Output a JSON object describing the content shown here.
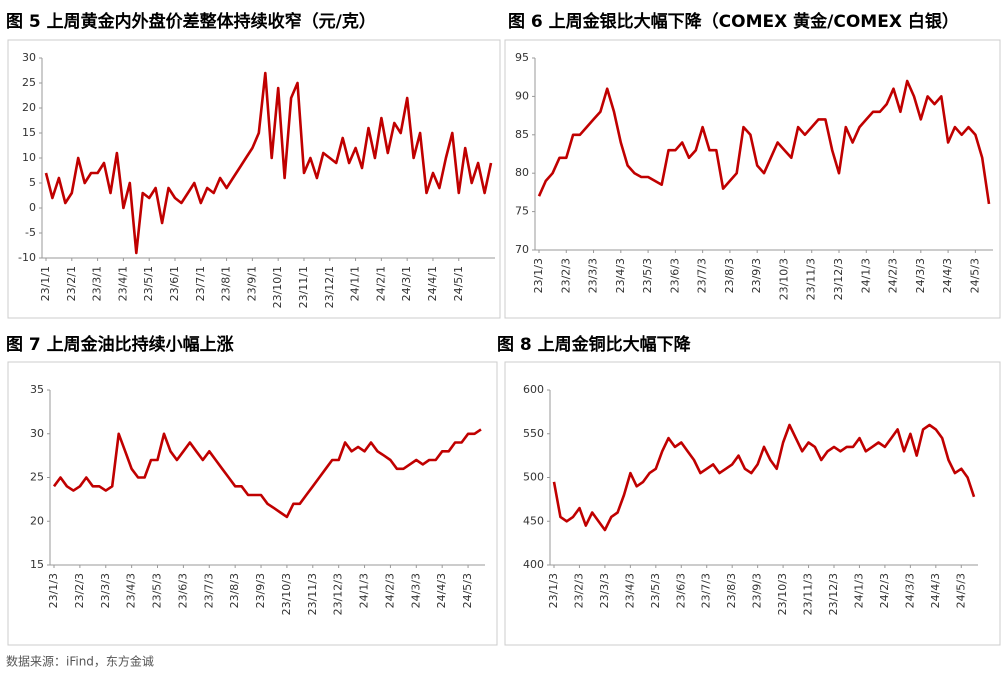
{
  "chart_data": [
    {
      "type": "line",
      "title": "图 5  上周黄金内外盘价差整体持续收窄（元/克）",
      "categories": [
        "23/1/1",
        null,
        null,
        null,
        "23/2/1",
        null,
        null,
        null,
        "23/3/1",
        null,
        null,
        null,
        "23/4/1",
        null,
        null,
        null,
        "23/5/1",
        null,
        null,
        null,
        "23/6/1",
        null,
        null,
        null,
        "23/7/1",
        null,
        null,
        null,
        "23/8/1",
        null,
        null,
        null,
        "23/9/1",
        null,
        null,
        null,
        "23/10/1",
        null,
        null,
        null,
        "23/11/1",
        null,
        null,
        null,
        "23/12/1",
        null,
        null,
        null,
        "24/1/1",
        null,
        null,
        null,
        "24/2/1",
        null,
        null,
        null,
        "24/3/1",
        null,
        null,
        null,
        "24/4/1",
        null,
        null,
        null,
        "24/5/1",
        null,
        null,
        null,
        null,
        null
      ],
      "series": [
        {
          "name": null,
          "color": "#c00000",
          "values": [
            7,
            2,
            6,
            1,
            3,
            10,
            5,
            7,
            7,
            9,
            3,
            11,
            0,
            5,
            -9,
            3,
            2,
            4,
            -3,
            4,
            2,
            1,
            3,
            5,
            1,
            4,
            3,
            6,
            4,
            6,
            8,
            10,
            12,
            15,
            27,
            10,
            24,
            6,
            22,
            25,
            7,
            10,
            6,
            11,
            10,
            9,
            14,
            9,
            12,
            8,
            16,
            10,
            18,
            11,
            17,
            15,
            22,
            10,
            15,
            3,
            7,
            4,
            10,
            15,
            3,
            12,
            5,
            9,
            3,
            9
          ]
        }
      ],
      "ylim": [
        -10,
        30
      ],
      "yticks": [
        -10,
        -5,
        0,
        5,
        10,
        15,
        20,
        25,
        30
      ]
    },
    {
      "type": "line",
      "title": "图 6  上周金银比大幅下降（COMEX 黄金/COMEX 白银）",
      "categories": [
        "23/1/3",
        null,
        null,
        null,
        "23/2/3",
        null,
        null,
        null,
        "23/3/3",
        null,
        null,
        null,
        "23/4/3",
        null,
        null,
        null,
        "23/5/3",
        null,
        null,
        null,
        "23/6/3",
        null,
        null,
        null,
        "23/7/3",
        null,
        null,
        null,
        "23/8/3",
        null,
        null,
        null,
        "23/9/3",
        null,
        null,
        null,
        "23/10/3",
        null,
        null,
        null,
        "23/11/3",
        null,
        null,
        null,
        "23/12/3",
        null,
        null,
        null,
        "24/1/3",
        null,
        null,
        null,
        "24/2/3",
        null,
        null,
        null,
        "24/3/3",
        null,
        null,
        null,
        "24/4/3",
        null,
        null,
        null,
        "24/5/3",
        null,
        null
      ],
      "series": [
        {
          "name": null,
          "color": "#c00000",
          "values": [
            77,
            79,
            80,
            82,
            82,
            85,
            85,
            86,
            87,
            88,
            91,
            88,
            84,
            81,
            80,
            79.5,
            79.5,
            79,
            78.5,
            83,
            83,
            84,
            82,
            83,
            86,
            83,
            83,
            78,
            79,
            80,
            86,
            85,
            81,
            80,
            82,
            84,
            83,
            82,
            86,
            85,
            86,
            87,
            87,
            83,
            80,
            86,
            84,
            86,
            87,
            88,
            88,
            89,
            91,
            88,
            92,
            90,
            87,
            90,
            89,
            90,
            84,
            86,
            85,
            86,
            85,
            82,
            76
          ]
        }
      ],
      "ylim": [
        70,
        95
      ],
      "yticks": [
        70,
        75,
        80,
        85,
        90,
        95
      ]
    },
    {
      "type": "line",
      "title": "图 7  上周金油比持续小幅上涨",
      "categories": [
        "23/1/3",
        null,
        null,
        null,
        "23/2/3",
        null,
        null,
        null,
        "23/3/3",
        null,
        null,
        null,
        "23/4/3",
        null,
        null,
        null,
        "23/5/3",
        null,
        null,
        null,
        "23/6/3",
        null,
        null,
        null,
        "23/7/3",
        null,
        null,
        null,
        "23/8/3",
        null,
        null,
        null,
        "23/9/3",
        null,
        null,
        null,
        "23/10/3",
        null,
        null,
        null,
        "23/11/3",
        null,
        null,
        null,
        "23/12/3",
        null,
        null,
        null,
        "24/1/3",
        null,
        null,
        null,
        "24/2/3",
        null,
        null,
        null,
        "24/3/3",
        null,
        null,
        null,
        "24/4/3",
        null,
        null,
        null,
        "24/5/3",
        null,
        null
      ],
      "series": [
        {
          "name": null,
          "color": "#c00000",
          "values": [
            24,
            25,
            24,
            23.5,
            24,
            25,
            24,
            24,
            23.5,
            24,
            30,
            28,
            26,
            25,
            25,
            27,
            27,
            30,
            28,
            27,
            28,
            29,
            28,
            27,
            28,
            27,
            26,
            25,
            24,
            24,
            23,
            23,
            23,
            22,
            21.5,
            21,
            20.5,
            22,
            22,
            23,
            24,
            25,
            26,
            27,
            27,
            29,
            28,
            28.5,
            28,
            29,
            28,
            27.5,
            27,
            26,
            26,
            26.5,
            27,
            26.5,
            27,
            27,
            28,
            28,
            29,
            29,
            30,
            30,
            30.5
          ]
        }
      ],
      "ylim": [
        15,
        35
      ],
      "yticks": [
        15,
        20,
        25,
        30,
        35
      ]
    },
    {
      "type": "line",
      "title": "图 8  上周金铜比大幅下降",
      "categories": [
        "23/1/3",
        null,
        null,
        null,
        "23/2/3",
        null,
        null,
        null,
        "23/3/3",
        null,
        null,
        null,
        "23/4/3",
        null,
        null,
        null,
        "23/5/3",
        null,
        null,
        null,
        "23/6/3",
        null,
        null,
        null,
        "23/7/3",
        null,
        null,
        null,
        "23/8/3",
        null,
        null,
        null,
        "23/9/3",
        null,
        null,
        null,
        "23/10/3",
        null,
        null,
        null,
        "23/11/3",
        null,
        null,
        null,
        "23/12/3",
        null,
        null,
        null,
        "24/1/3",
        null,
        null,
        null,
        "24/2/3",
        null,
        null,
        null,
        "24/3/3",
        null,
        null,
        null,
        "24/4/3",
        null,
        null,
        null,
        "24/5/3",
        null,
        null
      ],
      "series": [
        {
          "name": null,
          "color": "#c00000",
          "values": [
            495,
            455,
            450,
            455,
            465,
            445,
            460,
            450,
            440,
            455,
            460,
            480,
            505,
            490,
            495,
            505,
            510,
            530,
            545,
            535,
            540,
            530,
            520,
            505,
            510,
            515,
            505,
            510,
            515,
            525,
            510,
            505,
            515,
            535,
            520,
            510,
            540,
            560,
            545,
            530,
            540,
            535,
            520,
            530,
            535,
            530,
            535,
            535,
            545,
            530,
            535,
            540,
            535,
            545,
            555,
            530,
            550,
            525,
            555,
            560,
            555,
            545,
            520,
            505,
            510,
            500,
            478
          ]
        }
      ],
      "ylim": [
        400,
        600
      ],
      "yticks": [
        400,
        450,
        500,
        550,
        600
      ]
    }
  ],
  "source": "数据来源：iFind，东方金诚"
}
